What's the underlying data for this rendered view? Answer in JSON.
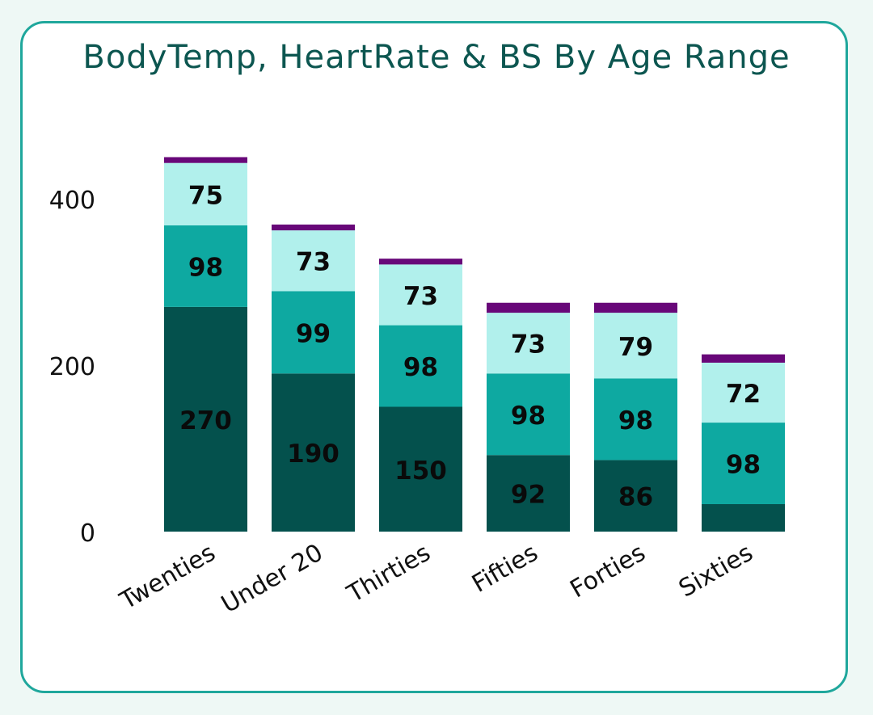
{
  "colors": {
    "background": "#eef8f5",
    "card_border": "#1fa79c",
    "title": "#0c5650"
  },
  "chart_data": {
    "type": "bar",
    "stacked": true,
    "title": "BodyTemp, HeartRate & BS By Age Range",
    "xlabel": "",
    "ylabel": "",
    "ylim": [
      0,
      460
    ],
    "yticks": [
      0,
      200,
      400
    ],
    "grid": false,
    "legend": "none",
    "categories": [
      "Twenties",
      "Under 20",
      "Thirties",
      "Fifties",
      "Forties",
      "Sixties"
    ],
    "series": [
      {
        "color": "#04514d",
        "values": [
          270,
          190,
          150,
          92,
          86,
          33
        ],
        "labels": [
          "270",
          "190",
          "150",
          "92",
          "86",
          ""
        ],
        "label_color": "#0a0a0a"
      },
      {
        "color": "#0ea9a1",
        "values": [
          98,
          99,
          98,
          98,
          98,
          98
        ],
        "labels": [
          "98",
          "99",
          "98",
          "98",
          "98",
          "98"
        ],
        "label_color": "#0a0a0a"
      },
      {
        "color": "#b1f0ec",
        "values": [
          75,
          73,
          73,
          73,
          79,
          72
        ],
        "labels": [
          "75",
          "73",
          "73",
          "73",
          "79",
          "72"
        ],
        "label_color": "#0a0a0a"
      },
      {
        "color": "#680779",
        "values": [
          7,
          7,
          7,
          12,
          12,
          10
        ],
        "labels": [
          "",
          "",
          "",
          "",
          "",
          ""
        ],
        "label_color": "#0a0a0a"
      }
    ]
  }
}
